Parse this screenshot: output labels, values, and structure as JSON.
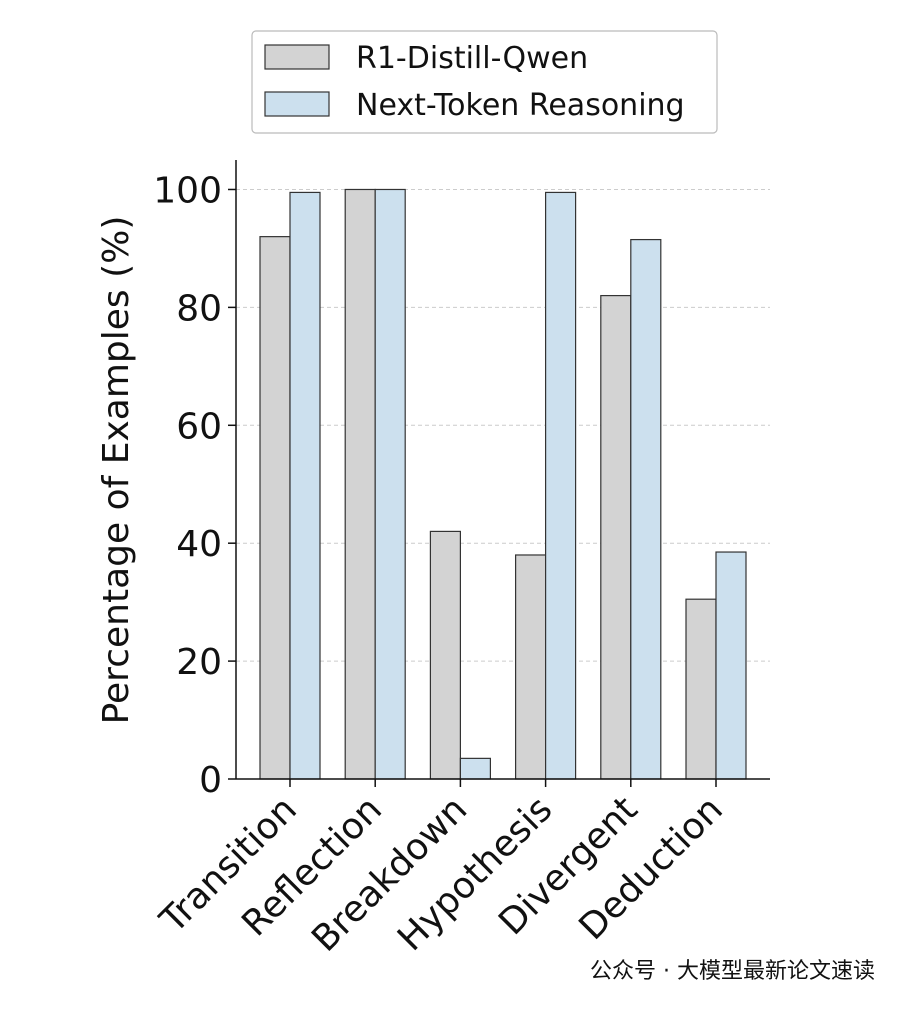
{
  "chart_data": {
    "type": "bar",
    "categories": [
      "Transition",
      "Reflection",
      "Breakdown",
      "Hypothesis",
      "Divergent",
      "Deduction"
    ],
    "series": [
      {
        "name": "R1-Distill-Qwen",
        "color": "#d3d3d3",
        "values": [
          92,
          100,
          42,
          38,
          82,
          30.5
        ]
      },
      {
        "name": "Next-Token Reasoning",
        "color": "#cce0ee",
        "values": [
          99.5,
          100,
          3.5,
          99.5,
          91.5,
          38.5
        ]
      }
    ],
    "y_label": "Percentage of Examples (%)",
    "ylim": [
      0,
      105
    ],
    "yticks": [
      0,
      20,
      40,
      60,
      80,
      100
    ],
    "grid": true,
    "legend": "top",
    "watermark": "公众号 · 大模型最新论文速读"
  }
}
